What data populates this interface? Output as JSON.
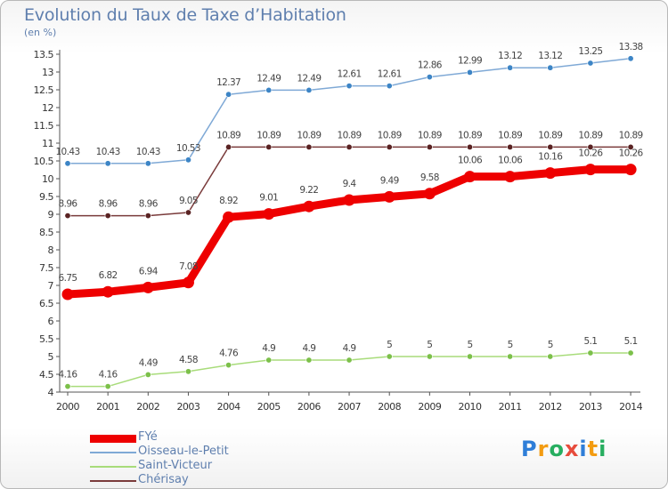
{
  "header": {
    "title": "Evolution du Taux de Taxe d’Habitation",
    "subtitle": "(en %)"
  },
  "logo": {
    "text": "Proxiti",
    "letters": [
      {
        "ch": "P",
        "color": "#2f7ed8"
      },
      {
        "ch": "r",
        "color": "#f39c12"
      },
      {
        "ch": "o",
        "color": "#27ae60"
      },
      {
        "ch": "x",
        "color": "#e74c3c"
      },
      {
        "ch": "i",
        "color": "#2f7ed8"
      },
      {
        "ch": "t",
        "color": "#f39c12"
      },
      {
        "ch": "i",
        "color": "#27ae60"
      }
    ]
  },
  "chart_data": {
    "type": "line",
    "title": "Evolution du Taux de Taxe d’Habitation",
    "ylabel": "(en %)",
    "xlabel": "",
    "x": [
      "2000",
      "2001",
      "2002",
      "2003",
      "2004",
      "2005",
      "2006",
      "2007",
      "2008",
      "2009",
      "2010",
      "2011",
      "2012",
      "2013",
      "2014"
    ],
    "ylim": [
      4,
      13.5
    ],
    "yticks": [
      "4",
      "4.5",
      "5",
      "5.5",
      "6",
      "6.5",
      "7",
      "7.5",
      "8",
      "8.5",
      "9",
      "9.5",
      "10",
      "10.5",
      "11",
      "11.5",
      "12",
      "12.5",
      "13",
      "13.5"
    ],
    "grid": false,
    "legend_position": "bottom-left",
    "series": [
      {
        "name": "FYé",
        "color": "#ee0000",
        "dot": "#ee0000",
        "width": 9,
        "values": [
          6.75,
          6.82,
          6.94,
          7.08,
          8.92,
          9.01,
          9.22,
          9.4,
          9.49,
          9.58,
          10.06,
          10.06,
          10.16,
          10.26,
          10.26
        ],
        "labels": [
          "6.75",
          "6.82",
          "6.94",
          "7.08",
          "8.92",
          "9.01",
          "9.22",
          "9.4",
          "9.49",
          "9.58",
          "10.06",
          "10.06",
          "10.16",
          "10.26",
          "10.26"
        ]
      },
      {
        "name": "Oisseau-le-Petit",
        "color": "#7fa9d6",
        "dot": "#3d85c6",
        "width": 1.5,
        "values": [
          10.43,
          10.43,
          10.43,
          10.53,
          12.37,
          12.49,
          12.49,
          12.61,
          12.61,
          12.86,
          12.99,
          13.12,
          13.12,
          13.25,
          13.38
        ],
        "labels": [
          "10.43",
          "10.43",
          "10.43",
          "10.53",
          "12.37",
          "12.49",
          "12.49",
          "12.61",
          "12.61",
          "12.86",
          "12.99",
          "13.12",
          "13.12",
          "13.25",
          "13.38"
        ]
      },
      {
        "name": "Saint-Victeur",
        "color": "#a8dc7a",
        "dot": "#7cc04a",
        "width": 1.5,
        "values": [
          4.16,
          4.16,
          4.49,
          4.58,
          4.76,
          4.9,
          4.9,
          4.9,
          5,
          5,
          5,
          5,
          5,
          5.1,
          5.1
        ],
        "labels": [
          "4.16",
          "4.16",
          "4.49",
          "4.58",
          "4.76",
          "4.9",
          "4.9",
          "4.9",
          "5",
          "5",
          "5",
          "5",
          "5",
          "5.1",
          "5.1"
        ]
      },
      {
        "name": "Chérisay",
        "color": "#7a3b3b",
        "dot": "#5a2323",
        "width": 1.5,
        "values": [
          8.96,
          8.96,
          8.96,
          9.05,
          10.89,
          10.89,
          10.89,
          10.89,
          10.89,
          10.89,
          10.89,
          10.89,
          10.89,
          10.89,
          10.89
        ],
        "labels": [
          "8.96",
          "8.96",
          "8.96",
          "9.05",
          "10.89",
          "10.89",
          "10.89",
          "10.89",
          "10.89",
          "10.89",
          "10.89",
          "10.89",
          "10.89",
          "10.89",
          "10.89"
        ]
      }
    ]
  }
}
